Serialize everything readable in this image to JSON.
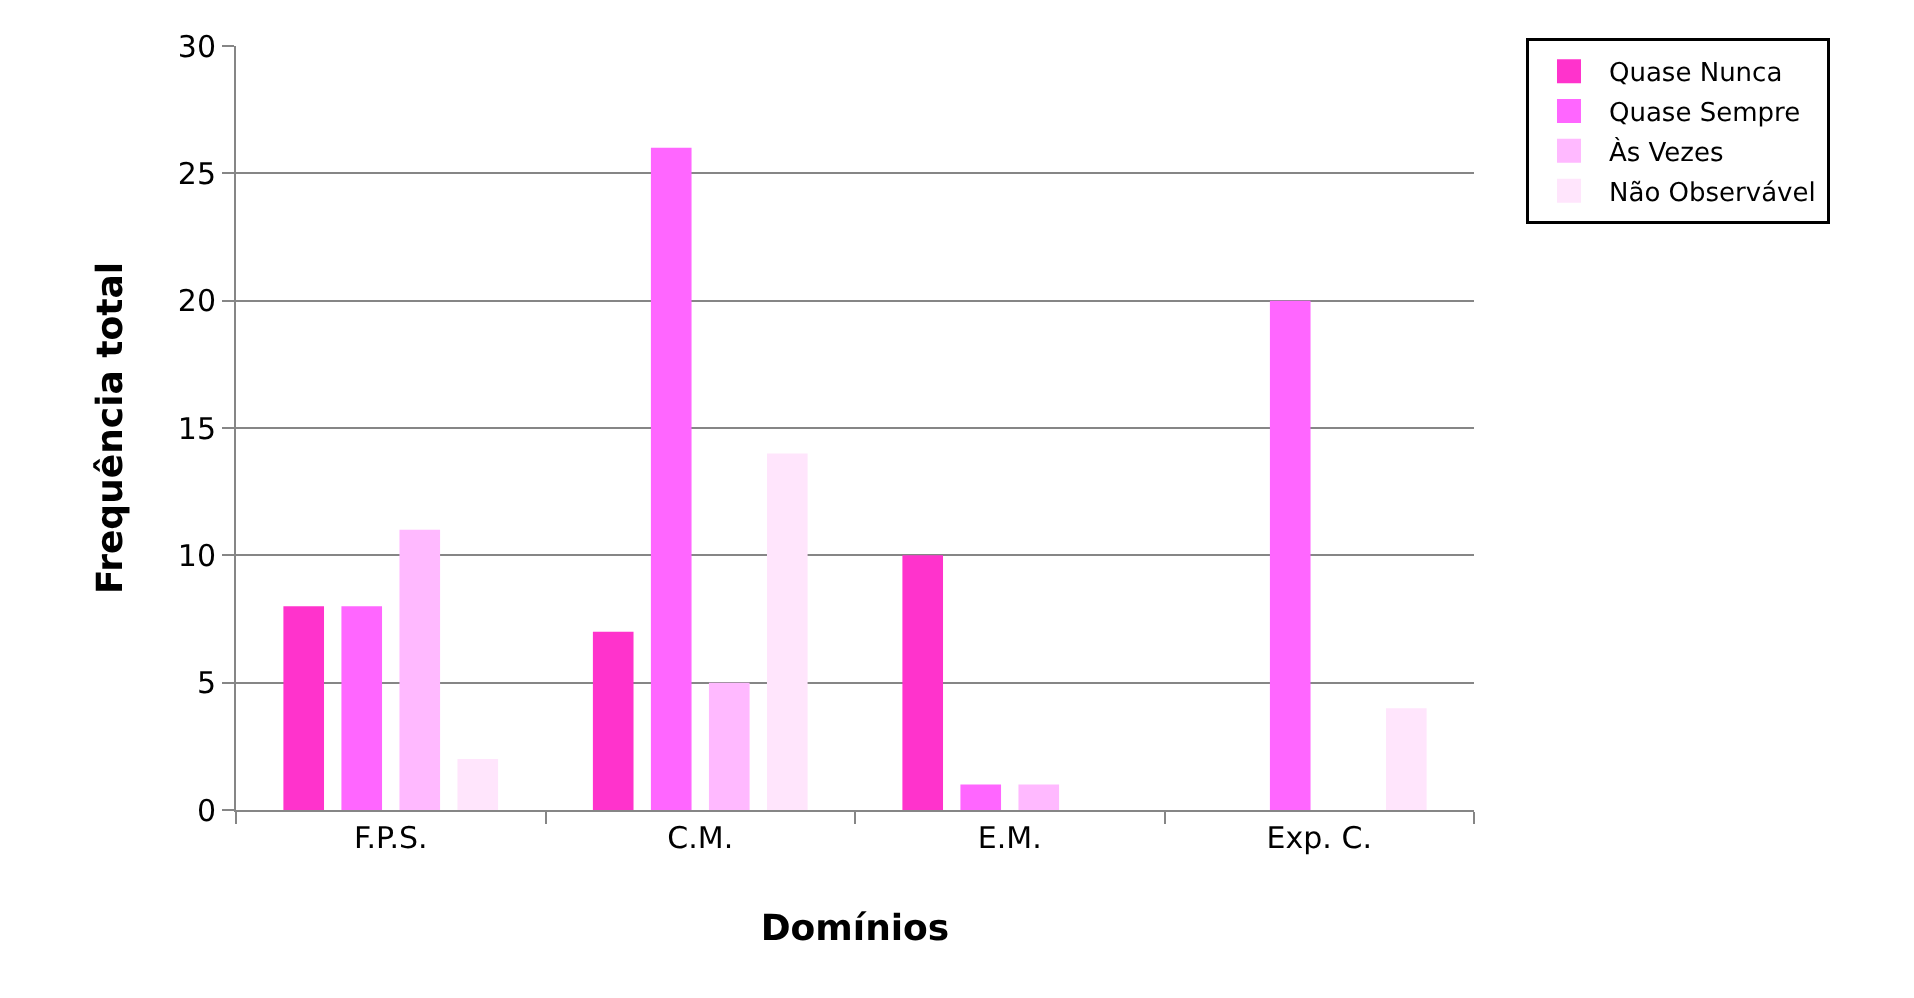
{
  "chart_data": {
    "type": "bar",
    "xlabel": "Domínios",
    "ylabel": "Frequência total",
    "categories": [
      "F.P.S.",
      "C.M.",
      "E.M.",
      "Exp. C."
    ],
    "series": [
      {
        "name": "Quase Nunca",
        "color": "#ff33cc",
        "values": [
          8,
          7,
          10,
          0
        ]
      },
      {
        "name": "Quase Sempre",
        "color": "#ff66ff",
        "values": [
          8,
          26,
          1,
          20
        ]
      },
      {
        "name": "Às Vezes",
        "color": "#ffb9ff",
        "values": [
          11,
          5,
          1,
          0
        ]
      },
      {
        "name": "Não Observável",
        "color": "#ffe5fc",
        "values": [
          2,
          14,
          0,
          4
        ]
      }
    ],
    "ylim": [
      0,
      30
    ],
    "yticks": [
      0,
      5,
      10,
      15,
      20,
      25,
      30
    ],
    "grid": "y",
    "legend": "right"
  }
}
